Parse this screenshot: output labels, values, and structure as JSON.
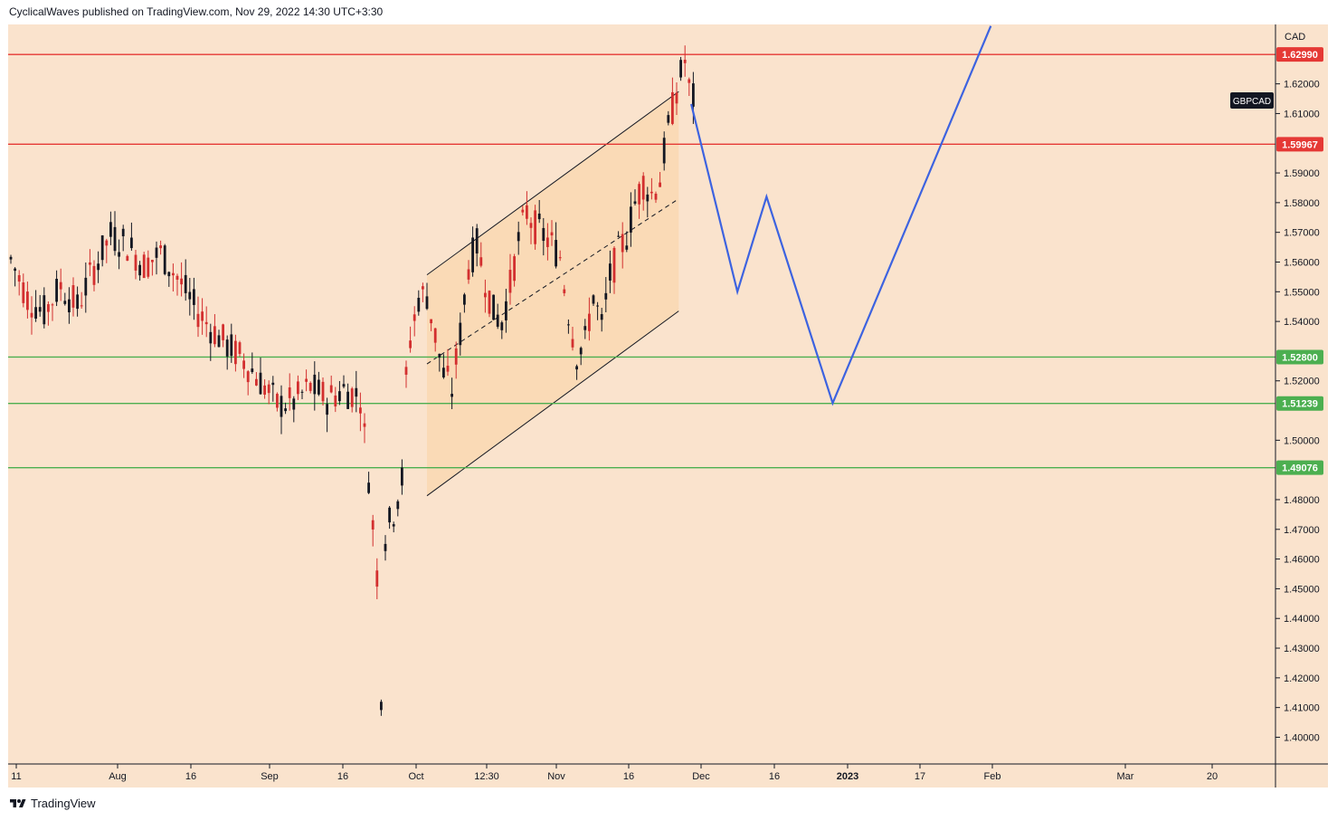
{
  "header": {
    "text": "CyclicalWaves published on TradingView.com, Nov 29, 2022 14:30 UTC+3:30"
  },
  "footer": {
    "brand": "TradingView",
    "logo_icon": "tradingview-logo-icon"
  },
  "colors": {
    "background": "#fae3cd",
    "channel_fill": "#fad8b4",
    "resistance": "#e53935",
    "support": "#4caf50",
    "projection": "#3d63e0",
    "candle_up": "#131722",
    "candle_down": "#d32f2f",
    "ticker_badge": "#131722"
  },
  "chart_data": {
    "type": "candlestick",
    "symbol": "GBPCAD",
    "currency": "CAD",
    "x_ticks": [
      "11",
      "Aug",
      "16",
      "Sep",
      "16",
      "Oct",
      "12:30",
      "Nov",
      "16",
      "Dec",
      "16",
      "2023",
      "17",
      "Feb",
      "Mar",
      "20"
    ],
    "y_ticks": [
      "1.62000",
      "1.61000",
      "1.59000",
      "1.58000",
      "1.57000",
      "1.56000",
      "1.55000",
      "1.54000",
      "1.52000",
      "1.50000",
      "1.48000",
      "1.47000",
      "1.46000",
      "1.45000",
      "1.44000",
      "1.43000",
      "1.42000",
      "1.41000",
      "1.40000"
    ],
    "ylim": [
      1.391,
      1.64
    ],
    "price_path": [
      [
        0,
        1.561
      ],
      [
        4,
        1.548
      ],
      [
        8,
        1.543
      ],
      [
        12,
        1.552
      ],
      [
        16,
        1.545
      ],
      [
        20,
        1.558
      ],
      [
        24,
        1.569
      ],
      [
        28,
        1.566
      ],
      [
        32,
        1.559
      ],
      [
        36,
        1.563
      ],
      [
        40,
        1.555
      ],
      [
        44,
        1.545
      ],
      [
        48,
        1.538
      ],
      [
        52,
        1.532
      ],
      [
        56,
        1.527
      ],
      [
        60,
        1.52
      ],
      [
        64,
        1.512
      ],
      [
        68,
        1.513
      ],
      [
        72,
        1.518
      ],
      [
        76,
        1.514
      ],
      [
        80,
        1.517
      ],
      [
        84,
        1.515
      ],
      [
        86,
        1.488
      ],
      [
        88,
        1.455
      ],
      [
        89,
        1.415
      ],
      [
        90,
        1.468
      ],
      [
        92,
        1.476
      ],
      [
        94,
        1.487
      ],
      [
        95,
        1.52
      ],
      [
        96,
        1.534
      ],
      [
        98,
        1.548
      ],
      [
        100,
        1.549
      ],
      [
        102,
        1.535
      ],
      [
        104,
        1.522
      ],
      [
        106,
        1.517
      ],
      [
        108,
        1.536
      ],
      [
        110,
        1.559
      ],
      [
        112,
        1.566
      ],
      [
        114,
        1.554
      ],
      [
        116,
        1.543
      ],
      [
        118,
        1.54
      ],
      [
        120,
        1.552
      ],
      [
        122,
        1.567
      ],
      [
        124,
        1.577
      ],
      [
        126,
        1.572
      ],
      [
        128,
        1.569
      ],
      [
        130,
        1.566
      ],
      [
        132,
        1.562
      ],
      [
        134,
        1.543
      ],
      [
        136,
        1.529
      ],
      [
        138,
        1.533
      ],
      [
        140,
        1.549
      ],
      [
        142,
        1.538
      ],
      [
        144,
        1.555
      ],
      [
        146,
        1.563
      ],
      [
        148,
        1.569
      ],
      [
        150,
        1.58
      ],
      [
        152,
        1.587
      ],
      [
        154,
        1.583
      ],
      [
        156,
        1.588
      ],
      [
        158,
        1.605
      ],
      [
        160,
        1.618
      ],
      [
        162,
        1.628
      ],
      [
        163,
        1.618
      ],
      [
        164,
        1.615
      ]
    ],
    "channel": {
      "upper": [
        [
          1.5557,
          100
        ],
        [
          1.6174,
          160.5
        ]
      ],
      "mid": [
        [
          1.5257,
          100
        ],
        [
          1.5813,
          160.5
        ]
      ],
      "lower": [
        [
          1.4813,
          100
        ],
        [
          1.5435,
          160.5
        ]
      ]
    },
    "horizontal_levels": [
      {
        "price": 1.6299,
        "label": "1.62990",
        "kind": "resistance"
      },
      {
        "price": 1.59967,
        "label": "1.59967",
        "kind": "resistance"
      },
      {
        "price": 1.528,
        "label": "1.52800",
        "kind": "support"
      },
      {
        "price": 1.51239,
        "label": "1.51239",
        "kind": "support"
      },
      {
        "price": 1.49076,
        "label": "1.49076",
        "kind": "support"
      }
    ],
    "projection_path": [
      [
        163.5,
        1.6132
      ],
      [
        174.6,
        1.55
      ],
      [
        181.6,
        1.582
      ],
      [
        197.5,
        1.5125
      ],
      [
        235.5,
        1.6395
      ]
    ]
  }
}
